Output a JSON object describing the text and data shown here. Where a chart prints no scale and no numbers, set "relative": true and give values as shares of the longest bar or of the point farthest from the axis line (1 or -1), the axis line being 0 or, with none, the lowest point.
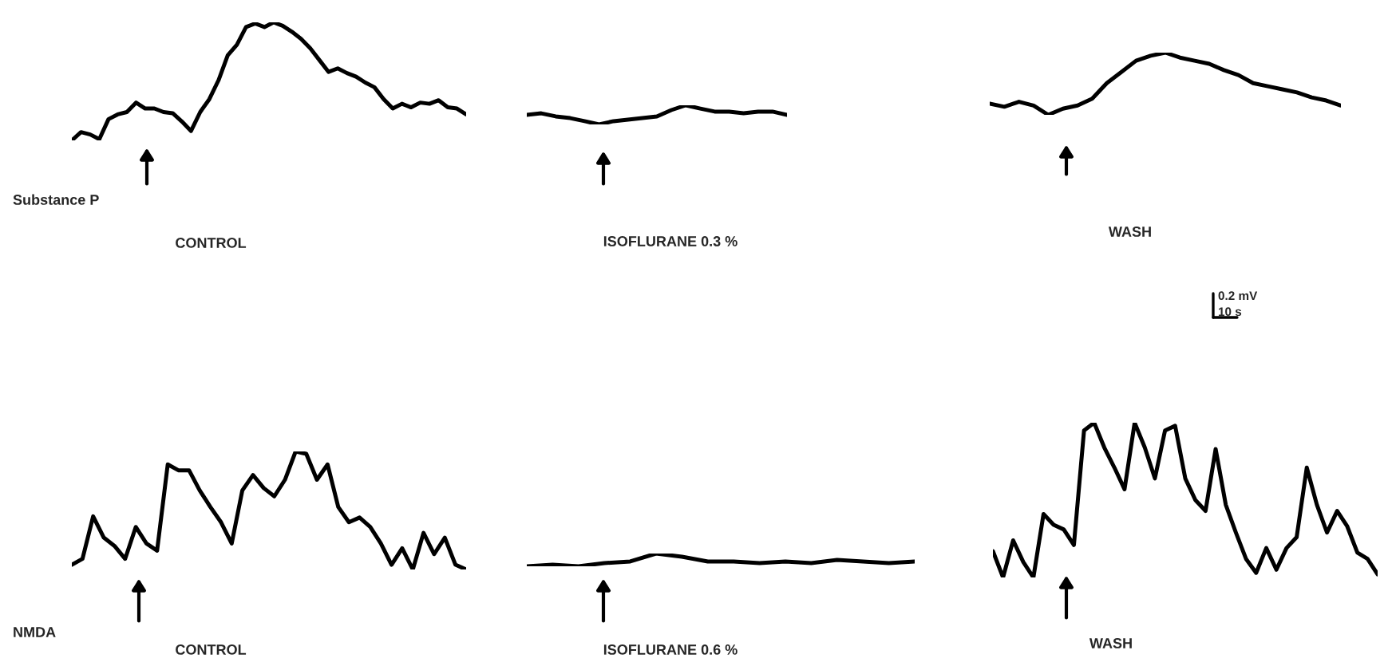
{
  "chart_data": [
    {
      "type": "line",
      "relative": true,
      "xlabel": "CONTROL",
      "annotations": [
        "Substance P"
      ],
      "categories": [
        null,
        null,
        null,
        null,
        null,
        null,
        null,
        null,
        null,
        null,
        null,
        null,
        null,
        null,
        null,
        null,
        null,
        null,
        null,
        null,
        null,
        null,
        null,
        null,
        null,
        null,
        null,
        null,
        null,
        null,
        null,
        null,
        null,
        null,
        null,
        null,
        null,
        null,
        null,
        null,
        null,
        null,
        null,
        null
      ],
      "series": [
        {
          "color": "#000000",
          "values": [
            0,
            0.07,
            0.05,
            0.01,
            0.18,
            0.22,
            0.24,
            0.32,
            0.27,
            0.27,
            0.24,
            0.23,
            0.16,
            0.08,
            0.24,
            0.35,
            0.51,
            0.72,
            0.81,
            0.96,
            0.99,
            0.96,
            1,
            0.97,
            0.92,
            0.86,
            0.78,
            0.68,
            0.58,
            0.61,
            0.57,
            0.54,
            0.49,
            0.45,
            0.35,
            0.27,
            0.31,
            0.28,
            0.32,
            0.31,
            0.34,
            0.28,
            0.27,
            0.22
          ]
        }
      ]
    },
    {
      "type": "line",
      "relative": true,
      "xlabel": "ISOFLURANE 0.3 %",
      "categories": [
        null,
        null,
        null,
        null,
        null,
        null,
        null,
        null,
        null,
        null,
        null,
        null,
        null,
        null,
        null,
        null,
        null,
        null,
        null
      ],
      "series": [
        {
          "color": "#000000",
          "values": [
            0.5,
            0.58,
            0.42,
            0.33,
            0.17,
            0,
            0.17,
            0.25,
            0.33,
            0.42,
            0.75,
            1,
            0.83,
            0.67,
            0.67,
            0.58,
            0.67,
            0.67,
            0.5
          ]
        }
      ]
    },
    {
      "type": "line",
      "relative": true,
      "xlabel": "WASH",
      "annotations": [
        "0.2 mV",
        "10 s"
      ],
      "categories": [
        null,
        null,
        null,
        null,
        null,
        null,
        null,
        null,
        null,
        null,
        null,
        null,
        null,
        null,
        null,
        null,
        null,
        null,
        null,
        null,
        null,
        null,
        null,
        null,
        null
      ],
      "series": [
        {
          "color": "#000000",
          "values": [
            0.18,
            0.13,
            0.21,
            0.15,
            0,
            0.1,
            0.15,
            0.26,
            0.51,
            0.69,
            0.87,
            0.95,
            1,
            0.92,
            0.87,
            0.82,
            0.72,
            0.64,
            0.51,
            0.46,
            0.41,
            0.36,
            0.28,
            0.23,
            0.15
          ]
        }
      ]
    },
    {
      "type": "line",
      "relative": true,
      "xlabel": "CONTROL",
      "annotations": [
        "NMDA"
      ],
      "categories": [
        null,
        null,
        null,
        null,
        null,
        null,
        null,
        null,
        null,
        null,
        null,
        null,
        null,
        null,
        null,
        null,
        null,
        null,
        null,
        null,
        null,
        null,
        null,
        null,
        null,
        null,
        null,
        null,
        null,
        null,
        null,
        null,
        null,
        null,
        null,
        null,
        null,
        null
      ],
      "series": [
        {
          "color": "#000000",
          "values": [
            0.04,
            0.09,
            0.45,
            0.27,
            0.2,
            0.09,
            0.36,
            0.22,
            0.16,
            0.89,
            0.84,
            0.84,
            0.67,
            0.53,
            0.4,
            0.22,
            0.67,
            0.8,
            0.69,
            0.62,
            0.76,
            1,
            0.98,
            0.76,
            0.89,
            0.53,
            0.4,
            0.44,
            0.36,
            0.22,
            0.04,
            0.18,
            0,
            0.31,
            0.13,
            0.27,
            0.04,
            0
          ]
        }
      ]
    },
    {
      "type": "line",
      "relative": true,
      "xlabel": "ISOFLURANE 0.6 %",
      "categories": [
        null,
        null,
        null,
        null,
        null,
        null,
        null,
        null,
        null,
        null,
        null,
        null,
        null,
        null,
        null,
        null
      ],
      "series": [
        {
          "color": "#000000",
          "values": [
            0,
            0.13,
            0,
            0.25,
            0.38,
            1,
            0.75,
            0.38,
            0.38,
            0.25,
            0.38,
            0.25,
            0.5,
            0.38,
            0.25,
            0.38
          ]
        }
      ]
    },
    {
      "type": "line",
      "relative": true,
      "xlabel": "WASH",
      "categories": [
        null,
        null,
        null,
        null,
        null,
        null,
        null,
        null,
        null,
        null,
        null,
        null,
        null,
        null,
        null,
        null,
        null,
        null,
        null,
        null,
        null,
        null,
        null,
        null,
        null,
        null,
        null,
        null,
        null,
        null,
        null,
        null,
        null,
        null,
        null,
        null,
        null,
        null,
        null
      ],
      "series": [
        {
          "color": "#000000",
          "values": [
            0.17,
            0,
            0.24,
            0.1,
            0,
            0.41,
            0.34,
            0.31,
            0.21,
            0.95,
            1,
            0.84,
            0.71,
            0.57,
            1,
            0.84,
            0.64,
            0.95,
            0.98,
            0.64,
            0.5,
            0.43,
            0.83,
            0.47,
            0.29,
            0.12,
            0.03,
            0.19,
            0.05,
            0.19,
            0.26,
            0.71,
            0.47,
            0.29,
            0.43,
            0.33,
            0.16,
            0.12,
            0.02
          ]
        }
      ]
    }
  ]
}
